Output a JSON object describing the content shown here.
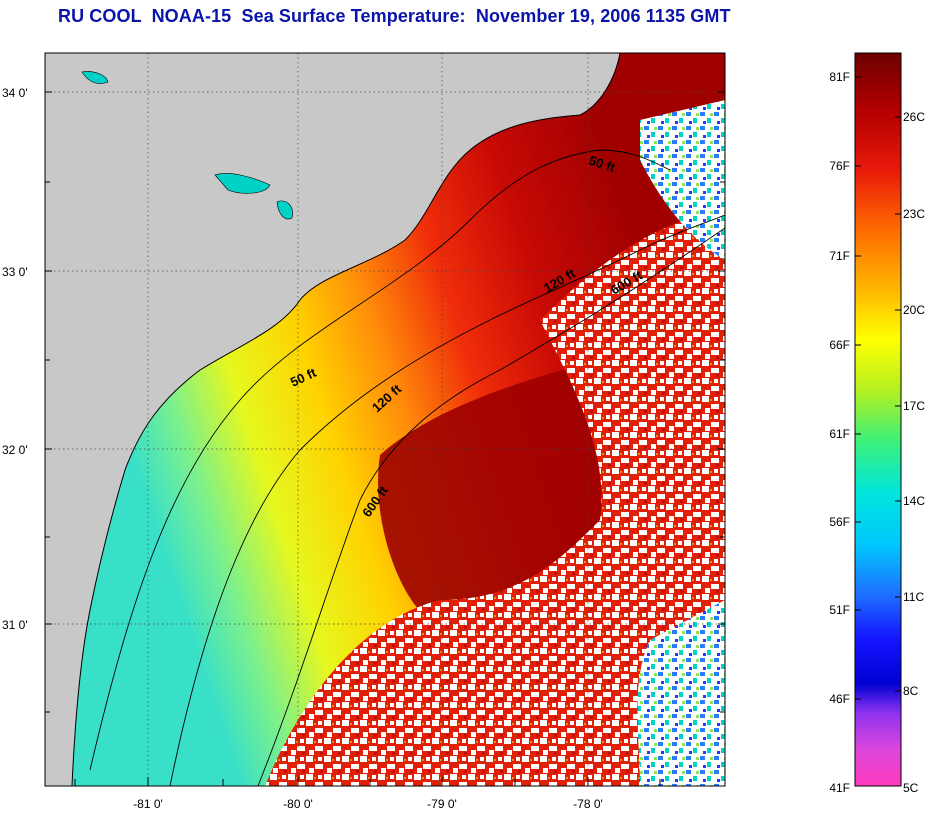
{
  "title": "RU COOL  NOAA-15  Sea Surface Temperature:  November 19, 2006 1135 GMT",
  "axes": {
    "lat_labels": [
      "34 0'",
      "33 0'",
      "32 0'",
      "31 0'"
    ],
    "lon_labels": [
      "-81 0'",
      "-80 0'",
      "-79 0'",
      "-78 0'"
    ]
  },
  "contours": [
    {
      "label": "50 ft"
    },
    {
      "label": "50 ft"
    },
    {
      "label": "120 ft"
    },
    {
      "label": "120 ft"
    },
    {
      "label": "600 ft"
    },
    {
      "label": "600 ft"
    }
  ],
  "colorbar": {
    "fahrenheit": [
      "81F",
      "76F",
      "71F",
      "66F",
      "61F",
      "56F",
      "51F",
      "46F",
      "41F"
    ],
    "celsius": [
      "26C",
      "23C",
      "20C",
      "17C",
      "14C",
      "11C",
      "8C",
      "5C"
    ]
  },
  "colors": {
    "title": "#0a14a8",
    "land": "#c8c8c8",
    "cloud": "#ffffff"
  }
}
